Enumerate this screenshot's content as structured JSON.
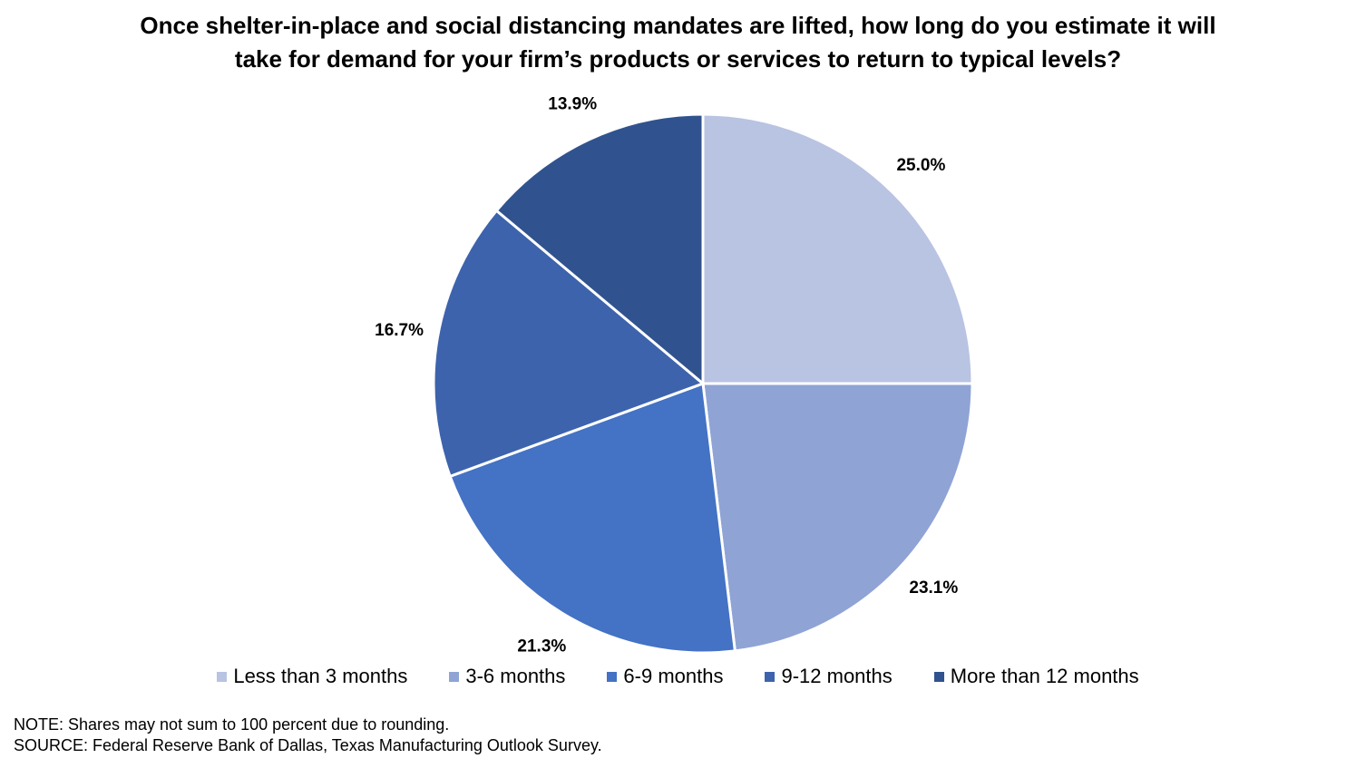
{
  "chart_data": {
    "type": "pie",
    "title": "Once shelter-in-place and social distancing mandates are lifted, how long do you estimate it will take for demand for your firm’s products or services to return to typical levels?",
    "title_lines": [
      "Once shelter-in-place and social distancing mandates are lifted, how long do you estimate it will",
      "take for demand for your firm’s products or services to return to typical levels?"
    ],
    "categories": [
      "Less than 3 months",
      "3-6 months",
      "6-9 months",
      "9-12 months",
      "More than 12 months"
    ],
    "values": [
      25.0,
      23.1,
      21.3,
      16.7,
      13.9
    ],
    "value_labels": [
      "25.0%",
      "23.1%",
      "21.3%",
      "16.7%",
      "13.9%"
    ],
    "colors": [
      "#B9C3E2",
      "#8FA3D5",
      "#4472C4",
      "#3D63AD",
      "#30538F"
    ],
    "start_angle": "12 o'clock",
    "direction": "clockwise",
    "legend_position": "bottom"
  },
  "notes": {
    "note": "NOTE: Shares may not sum to 100 percent due to rounding.",
    "source": "SOURCE: Federal Reserve Bank of Dallas, Texas Manufacturing Outlook Survey."
  }
}
